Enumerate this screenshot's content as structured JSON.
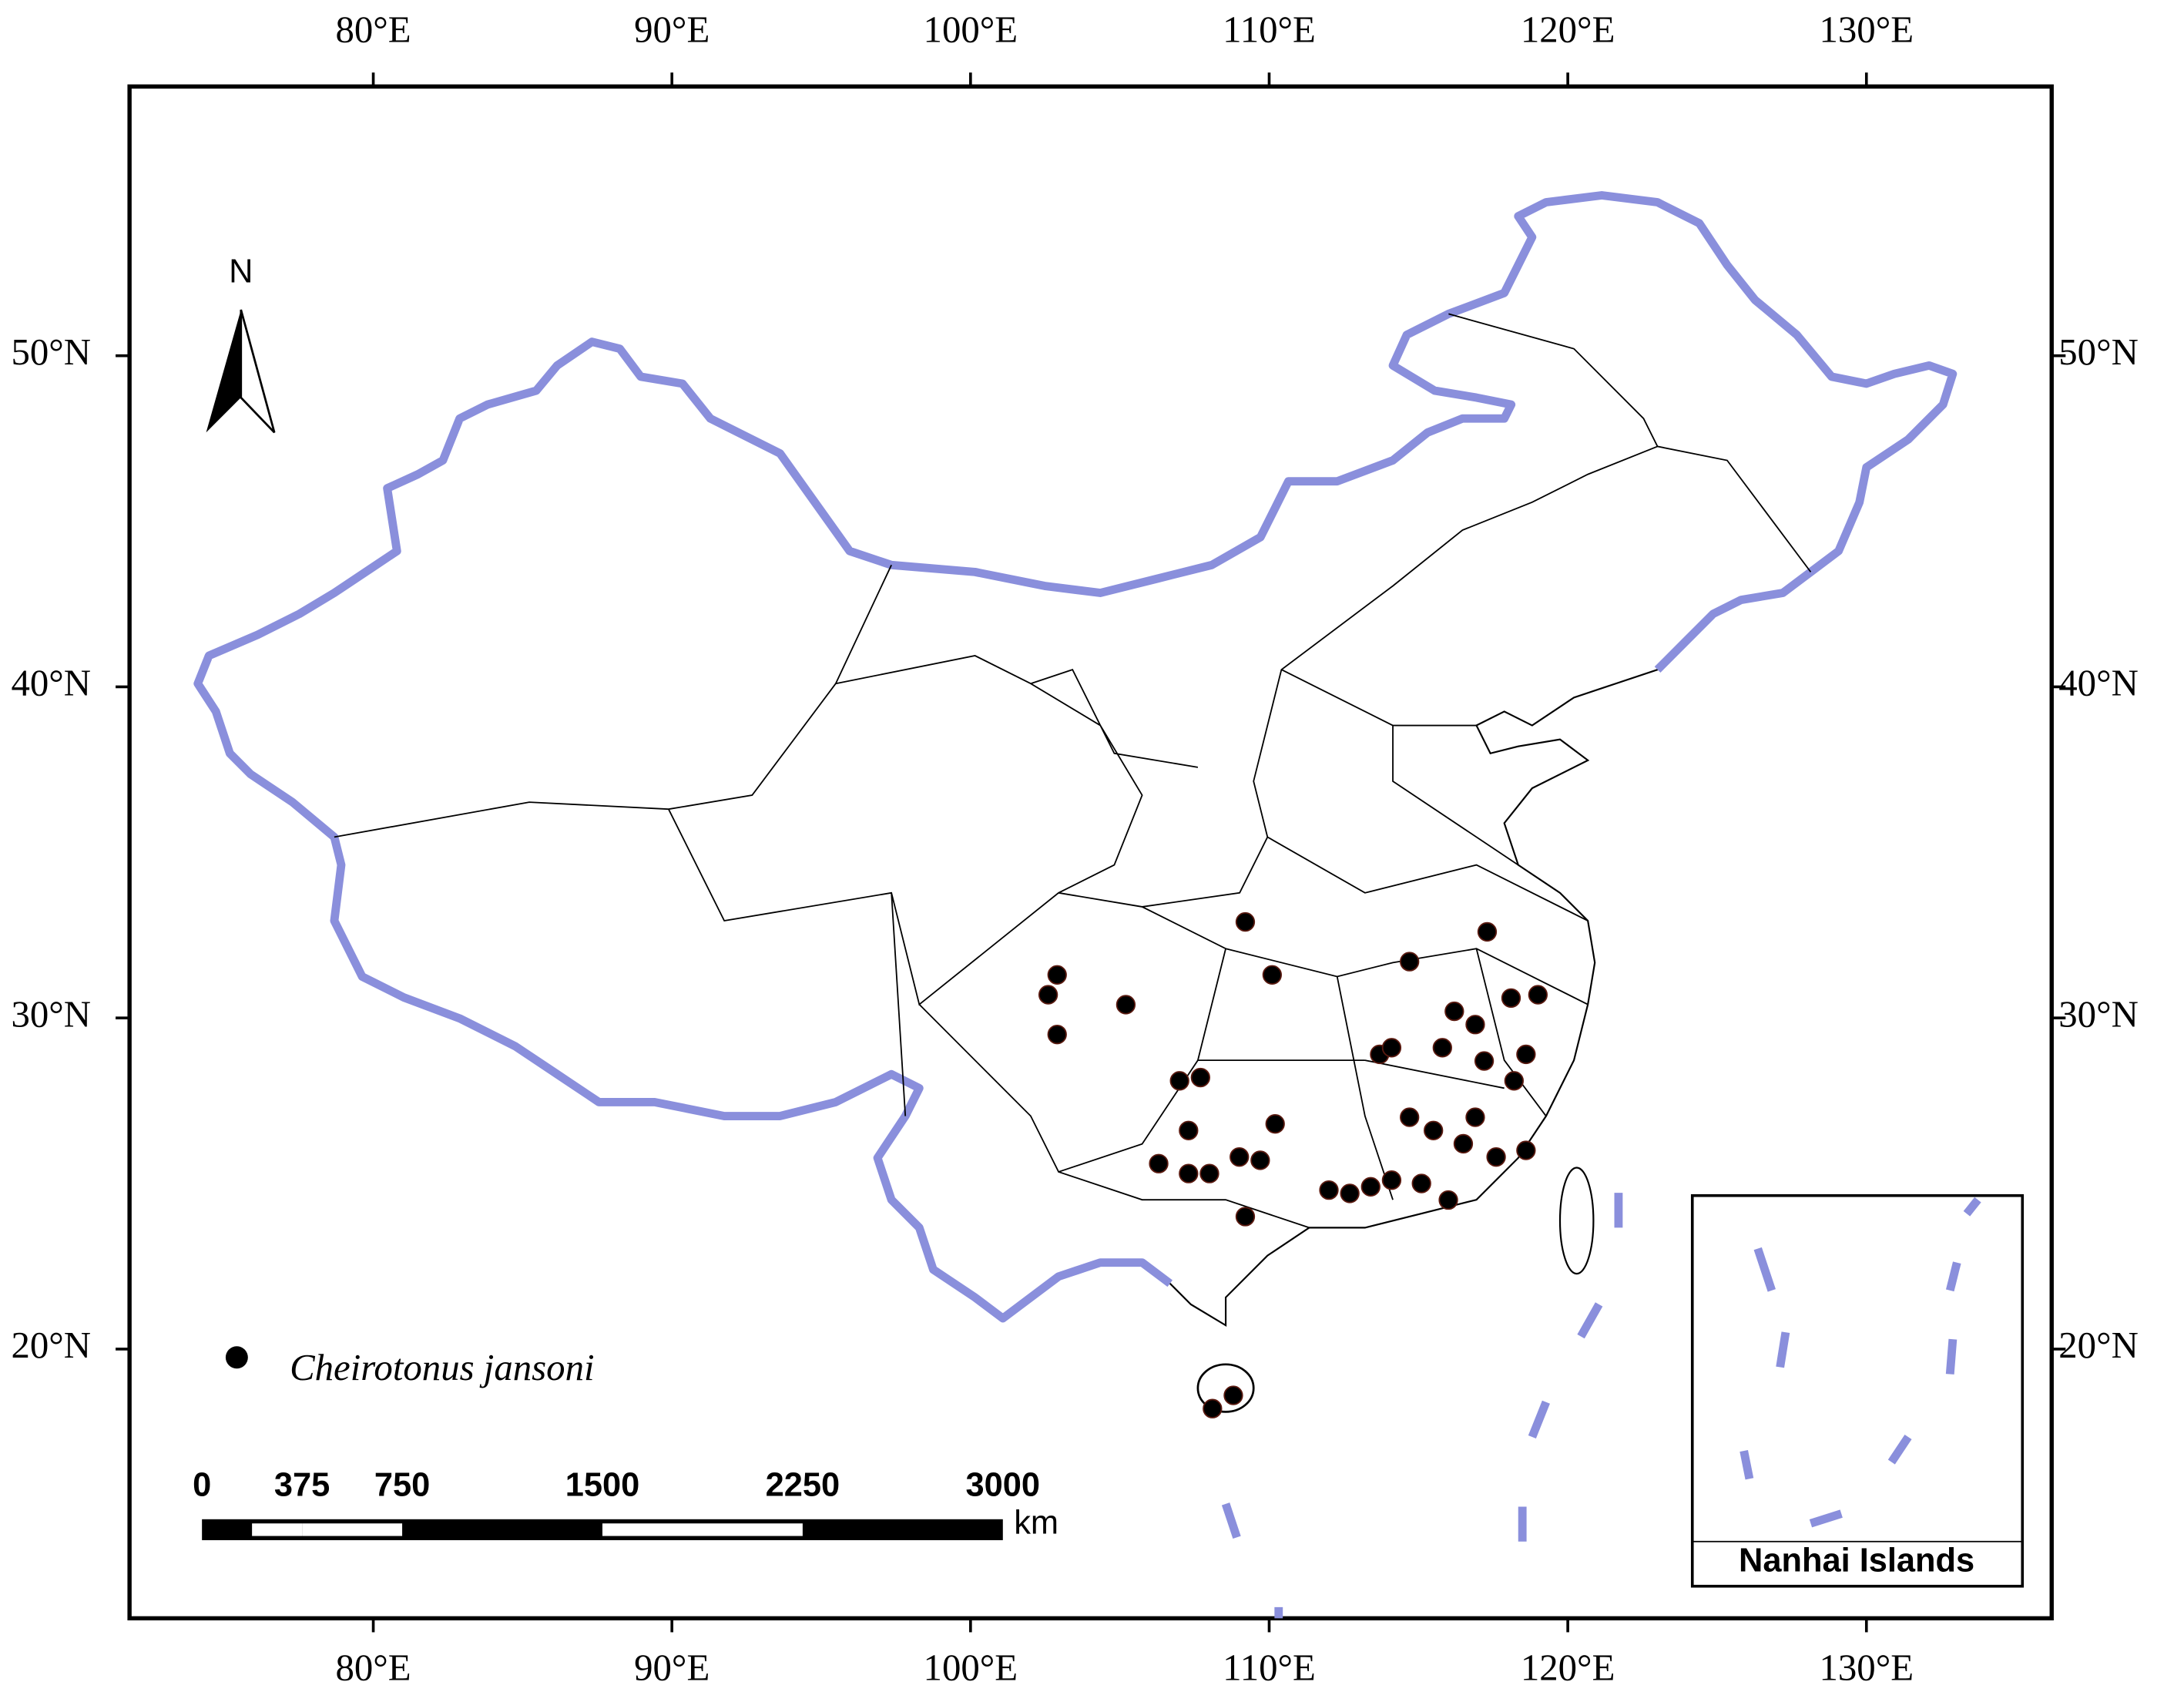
{
  "map": {
    "xticks": [
      {
        "value": 80,
        "label": "80°E"
      },
      {
        "value": 90,
        "label": "90°E"
      },
      {
        "value": 100,
        "label": "100°E"
      },
      {
        "value": 110,
        "label": "110°E"
      },
      {
        "value": 120,
        "label": "120°E"
      },
      {
        "value": 130,
        "label": "130°E"
      }
    ],
    "yticks": [
      {
        "value": 50,
        "label": "50°N"
      },
      {
        "value": 40,
        "label": "40°N"
      },
      {
        "value": 30,
        "label": "30°N"
      },
      {
        "value": 20,
        "label": "20°N"
      }
    ],
    "north": "N",
    "legend": {
      "label": "Cheirotonus jansoni"
    },
    "occurrences": {
      "lon": [
        102.9,
        102.6,
        102.9,
        105.2,
        109.2,
        110.1,
        107.0,
        107.7,
        107.3,
        106.3,
        107.3,
        108.0,
        109.0,
        110.2,
        109.7,
        109.2,
        114.7,
        117.3,
        116.2,
        116.9,
        118.1,
        119.0,
        113.7,
        114.1,
        115.8,
        117.2,
        118.6,
        118.2,
        114.7,
        115.5,
        116.5,
        116.9,
        117.6,
        118.6,
        112.0,
        112.7,
        113.4,
        114.1,
        115.1,
        116.0,
        108.8,
        108.1
      ],
      "lat": [
        31.3,
        30.7,
        29.5,
        30.4,
        32.9,
        31.3,
        28.1,
        28.2,
        26.6,
        25.6,
        25.3,
        25.3,
        25.8,
        26.8,
        25.7,
        24.0,
        31.7,
        32.6,
        30.2,
        29.8,
        30.6,
        30.7,
        28.9,
        29.1,
        29.1,
        28.7,
        28.9,
        28.1,
        27.0,
        26.6,
        26.2,
        27.0,
        25.8,
        26.0,
        24.8,
        24.7,
        24.9,
        25.1,
        25.0,
        24.5,
        18.6,
        18.2
      ]
    },
    "scale_bar": {
      "ticks": [
        0,
        375,
        750,
        1500,
        2250,
        3000
      ],
      "unit": "km"
    },
    "inset": {
      "title": "Nanhai Islands"
    }
  }
}
